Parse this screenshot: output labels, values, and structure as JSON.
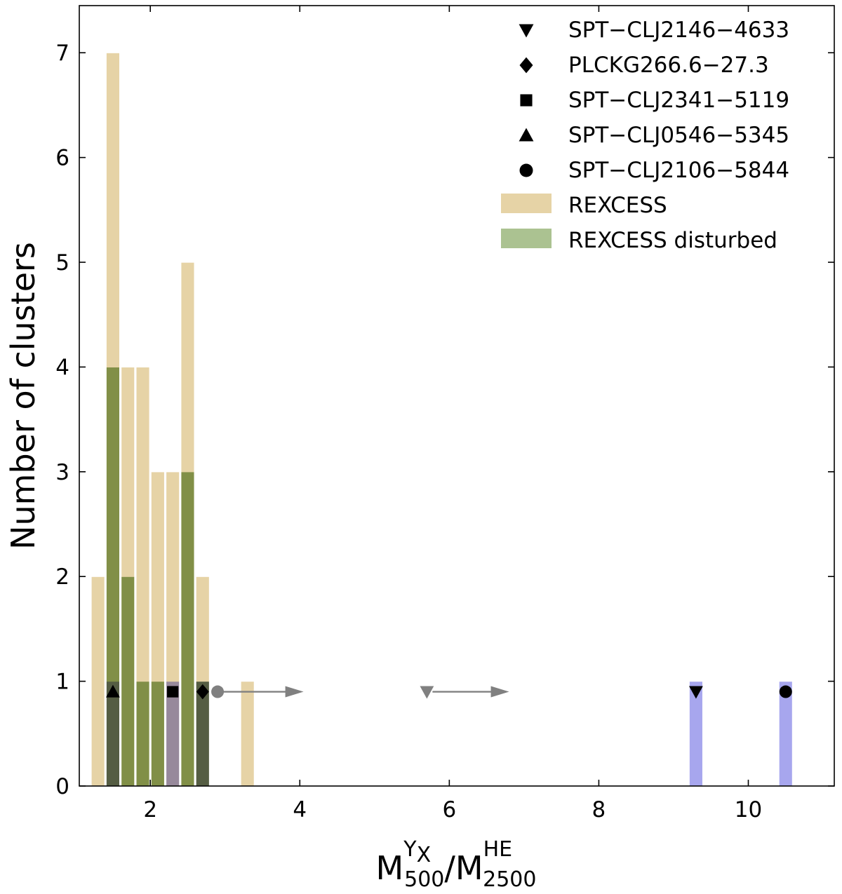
{
  "chart_data": {
    "type": "bar",
    "title": "",
    "xlabel": {
      "numerator_base": "M",
      "numerator_sup": "Y",
      "numerator_sup_sub": "X",
      "numerator_sub": "500",
      "separator": "/",
      "denominator_base": "M",
      "denominator_sup": "HE",
      "denominator_sub": "2500"
    },
    "ylabel": "Number of clusters",
    "xlim": [
      1.05,
      11.15
    ],
    "ylim": [
      0,
      7.45
    ],
    "xticks": [
      2,
      4,
      6,
      8,
      10
    ],
    "yticks": [
      0,
      1,
      2,
      3,
      4,
      5,
      6,
      7
    ],
    "bin_width": 0.2,
    "series": [
      {
        "name": "REXCESS",
        "color": "#e6d3a6",
        "bins": [
          {
            "left": 1.2,
            "count": 2
          },
          {
            "left": 1.4,
            "count": 7
          },
          {
            "left": 1.6,
            "count": 4
          },
          {
            "left": 1.8,
            "count": 4
          },
          {
            "left": 2.0,
            "count": 3
          },
          {
            "left": 2.2,
            "count": 3
          },
          {
            "left": 2.4,
            "count": 5
          },
          {
            "left": 2.6,
            "count": 2
          },
          {
            "left": 3.2,
            "count": 1
          }
        ]
      },
      {
        "name": "REXCESS disturbed",
        "color": "#8fad6c",
        "bins": [
          {
            "left": 1.4,
            "count": 4
          },
          {
            "left": 1.6,
            "count": 2
          },
          {
            "left": 1.8,
            "count": 1
          },
          {
            "left": 2.0,
            "count": 1
          },
          {
            "left": 2.4,
            "count": 3
          },
          {
            "left": 2.6,
            "count": 1
          }
        ]
      },
      {
        "color": "#a7a6ee",
        "bins": [
          {
            "left": 1.4,
            "count": 1
          },
          {
            "left": 2.2,
            "count": 1
          },
          {
            "left": 2.6,
            "count": 1
          },
          {
            "left": 9.2,
            "count": 1
          },
          {
            "left": 10.4,
            "count": 1
          }
        ]
      }
    ],
    "overlap_color": "#6a7a98",
    "clusters": [
      {
        "name": "SPT−CLJ2146−4633",
        "marker": "triangle-down",
        "x": 9.3,
        "y": 0.9,
        "lower_limit": {
          "x": 5.7,
          "arrow_to": 6.8
        }
      },
      {
        "name": "PLCKG266.6−27.3",
        "marker": "diamond",
        "x": 2.7,
        "y": 0.9
      },
      {
        "name": "SPT−CLJ2341−5119",
        "marker": "square",
        "x": 2.3,
        "y": 0.9
      },
      {
        "name": "SPT−CLJ0546−5345",
        "marker": "triangle-up",
        "x": 1.5,
        "y": 0.9
      },
      {
        "name": "SPT−CLJ2106−5844",
        "marker": "circle",
        "x": 10.5,
        "y": 0.9,
        "lower_limit": {
          "x": 2.9,
          "arrow_to": 4.05
        }
      }
    ],
    "lower_limit_color": "#808080",
    "legend_position": "top-right",
    "grid": false
  }
}
